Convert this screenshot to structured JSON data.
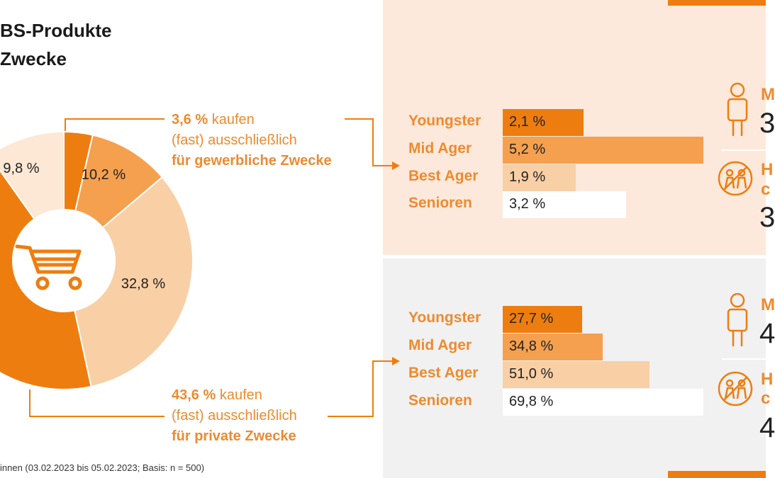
{
  "header": {
    "title_line1": "BS-Produkte",
    "title_line2": "Zwecke"
  },
  "colors": {
    "orange_dark": "#ee7d0f",
    "orange_mid": "#f5a04e",
    "orange_light": "#f9cfa5",
    "orange_pale": "#fde7d5",
    "panel_top": "#fde9dc",
    "panel_bottom": "#f1f1f1",
    "text_orange": "#ee8a2e"
  },
  "annotations": {
    "top": {
      "value": "3,6 %",
      "text1": " kaufen",
      "text2": "(fast) ausschließlich",
      "text3": "für gewerbliche Zwecke"
    },
    "bottom": {
      "value": "43,6 %",
      "text1": " kaufen",
      "text2": "(fast) ausschließlich",
      "text3": "für private Zwecke"
    }
  },
  "chart_data": [
    {
      "type": "pie",
      "donut": true,
      "center_icon": "shopping-cart-icon",
      "slices": [
        {
          "label": "3,6 %",
          "value": 3.6,
          "color": "#ee7d0f",
          "shown_label": ""
        },
        {
          "label": "10,2 %",
          "value": 10.2,
          "color": "#f5a04e",
          "shown_label": "10,2 %"
        },
        {
          "label": "32,8 %",
          "value": 32.8,
          "color": "#f9cfa5",
          "shown_label": "32,8 %"
        },
        {
          "label": "43,6 %",
          "value": 43.6,
          "color": "#ee7d0f",
          "shown_label": ""
        },
        {
          "label": "9,8 %",
          "value": 9.8,
          "color": "#fde7d5",
          "shown_label": "9,8 %"
        }
      ]
    },
    {
      "type": "bar",
      "orientation": "horizontal",
      "categories": [
        "Youngster",
        "Mid Ager",
        "Best Ager",
        "Senioren"
      ],
      "values": [
        2.1,
        5.2,
        1.9,
        3.2
      ],
      "labels": [
        "2,1 %",
        "5,2 %",
        "1,9 %",
        "3,2 %"
      ],
      "colors": [
        "#ee7d0f",
        "#f5a04e",
        "#f9cfa5",
        "#ffffff"
      ],
      "xlim": [
        0,
        5.2
      ]
    },
    {
      "type": "bar",
      "orientation": "horizontal",
      "categories": [
        "Youngster",
        "Mid Ager",
        "Best Ager",
        "Senioren"
      ],
      "values": [
        27.7,
        34.8,
        51.0,
        69.8
      ],
      "labels": [
        "27,7 %",
        "34,8 %",
        "51,0 %",
        "69,8 %"
      ],
      "colors": [
        "#ee7d0f",
        "#f5a04e",
        "#f9cfa5",
        "#ffffff"
      ],
      "xlim": [
        0,
        69.8
      ]
    }
  ],
  "right_column": {
    "top": {
      "letter1": "M",
      "num1": "3",
      "letter2": "H",
      "letter2b": "c",
      "num2": "3"
    },
    "bottom": {
      "letter1": "M",
      "num1": "4",
      "letter2": "H",
      "letter2b": "c",
      "num2": "4"
    }
  },
  "footer": {
    "source": "innen (03.02.2023 bis 05.02.2023; Basis: n = 500)"
  }
}
